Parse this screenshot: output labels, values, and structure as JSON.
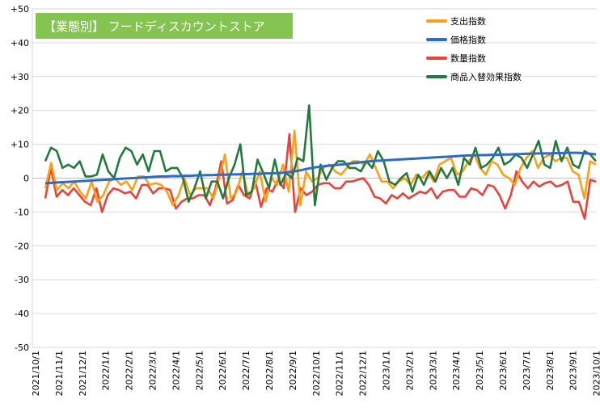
{
  "chart_data": {
    "type": "line",
    "title": "【業態別】 フードディスカウントストア",
    "ylim": [
      -50,
      50
    ],
    "yticks": [
      50,
      40,
      30,
      20,
      10,
      0,
      -10,
      -20,
      -30,
      -40,
      -50
    ],
    "ytick_labels": [
      "+50",
      "+40",
      "+30",
      "+20",
      "+10",
      "0",
      "-10",
      "-20",
      "-30",
      "-40",
      "-50"
    ],
    "x_tick_labels": [
      "2021/10/1",
      "2021/11/1",
      "2021/12/1",
      "2022/1/1",
      "2022/2/1",
      "2022/3/1",
      "2022/4/1",
      "2022/5/1",
      "2022/6/1",
      "2022/7/1",
      "2022/8/1",
      "2022/9/1",
      "2022/10/1",
      "2022/11/1",
      "2022/12/1",
      "2023/1/1",
      "2023/2/1",
      "2023/3/1",
      "2023/4/1",
      "2023/5/1",
      "2023/6/1",
      "2023/7/1",
      "2023/8/1",
      "2023/9/1",
      "2023/10/1"
    ],
    "grid": "horizontal",
    "legend_position": "top-right",
    "series": [
      {
        "name": "支出指数",
        "color": "#f9a11b",
        "values": [
          -3,
          4.5,
          -3.5,
          -1.5,
          -3,
          -1,
          -4,
          -6,
          -1,
          -7,
          -5,
          -1,
          0,
          -2,
          -1,
          -3.5,
          0.5,
          0.5,
          -2,
          -1.5,
          -2,
          -4,
          -8,
          -5,
          0,
          -5,
          -3,
          -3,
          -3,
          -6,
          0,
          7,
          -6,
          -4,
          2,
          -5,
          -3,
          2,
          -7,
          0,
          -2,
          4,
          -4,
          14,
          -8,
          2,
          -1,
          0,
          3,
          4,
          2,
          1,
          3,
          5,
          5,
          4,
          7,
          3,
          -1,
          -1,
          -3,
          -1,
          0,
          -2,
          1,
          0,
          2,
          -1,
          4,
          5,
          6,
          1,
          2,
          5,
          7,
          3,
          1,
          5,
          4,
          1,
          0,
          -2,
          3,
          6,
          8,
          3,
          6,
          7,
          5,
          6,
          6,
          2,
          1,
          -6,
          5,
          4
        ]
      },
      {
        "name": "価格指数",
        "color": "#2e6bc4",
        "values": [
          -1.5,
          -1.4,
          -1.3,
          -1.2,
          -1.1,
          -1.0,
          -0.9,
          -0.8,
          -0.7,
          -0.6,
          -0.5,
          -0.4,
          -0.3,
          -0.2,
          -0.1,
          0,
          0.1,
          0.2,
          0.3,
          0.4,
          0.5,
          0.5,
          0.6,
          0.6,
          0.7,
          0.7,
          0.8,
          0.8,
          0.9,
          0.9,
          1.0,
          1.0,
          1.1,
          1.1,
          1.2,
          1.2,
          1.3,
          1.3,
          1.4,
          1.4,
          1.5,
          1.6,
          1.8,
          2.0,
          2.3,
          2.7,
          3.0,
          3.3,
          3.5,
          3.7,
          3.9,
          4.0,
          4.2,
          4.4,
          4.6,
          4.8,
          5.0,
          5.1,
          5.2,
          5.3,
          5.4,
          5.5,
          5.6,
          5.7,
          5.8,
          5.9,
          6.0,
          6.1,
          6.2,
          6.3,
          6.4,
          6.5,
          6.6,
          6.7,
          6.7,
          6.8,
          6.8,
          6.9,
          6.9,
          7.0,
          7.0,
          7.1,
          7.1,
          7.2,
          7.2,
          7.3,
          7.3,
          7.3,
          7.4,
          7.4,
          7.5,
          7.5,
          7.5,
          7.3,
          7.2,
          7.0
        ]
      },
      {
        "name": "数量指数",
        "color": "#e6443a",
        "values": [
          -6,
          3,
          -5.5,
          -3.5,
          -5,
          -3,
          -5,
          -7,
          -8,
          -3,
          -10,
          -5,
          -3,
          -3.5,
          -4.5,
          -4,
          -6,
          -2,
          -2,
          -4.5,
          -3,
          -3,
          -3.5,
          -9,
          -7,
          -6,
          -6,
          -5,
          -5,
          -8,
          -3,
          5,
          -7.5,
          -6.5,
          -2,
          -5,
          -6,
          -1,
          -8.5,
          -3,
          -4,
          -0.5,
          -3,
          13,
          -10,
          -3,
          -5,
          -4,
          -2,
          -1.5,
          -1.5,
          -3,
          -3,
          -1,
          -1,
          -0.5,
          0,
          -2,
          -5.5,
          -6,
          -7.5,
          -5,
          -6,
          -4.5,
          -6,
          -5,
          -4,
          -4.5,
          -3,
          -6,
          -4,
          -3.5,
          -3.5,
          -5.5,
          -5.5,
          -3,
          -3.5,
          -5,
          -2,
          -2.5,
          -5,
          -9,
          -5,
          2,
          -1,
          -3,
          -1,
          -2.5,
          -1.5,
          -1,
          -2.5,
          -2,
          -1,
          -7,
          -7,
          -12,
          -0.5,
          -1
        ]
      },
      {
        "name": "商品入替効果指数",
        "color": "#247a3c",
        "values": [
          5,
          9,
          8,
          3,
          4,
          3,
          5,
          0.5,
          0.5,
          1,
          7,
          2,
          0,
          6,
          9,
          8,
          4,
          7,
          2,
          8,
          8,
          2,
          3,
          3,
          0,
          -7,
          -3,
          2,
          -6,
          -1,
          -1,
          -6,
          0,
          4,
          10,
          -5,
          -4,
          5.5,
          1.5,
          -3,
          5.5,
          -2,
          1.5,
          0,
          6,
          5,
          21.5,
          -8,
          4,
          -0.5,
          3,
          5,
          5,
          3,
          3,
          2,
          5,
          3,
          8,
          5,
          -1,
          -2,
          0,
          1.5,
          -4,
          1,
          -2,
          2,
          -1,
          3,
          0,
          3,
          -2,
          6,
          4,
          9,
          3,
          4,
          6,
          9,
          4,
          5,
          7,
          6,
          3,
          7,
          11,
          4,
          3,
          11,
          5,
          9,
          4,
          3,
          8,
          7,
          5
        ]
      }
    ]
  }
}
